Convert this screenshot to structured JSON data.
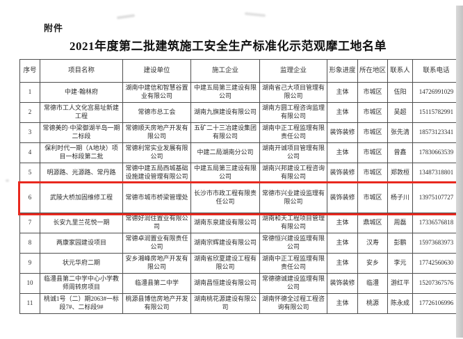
{
  "page": {
    "attachment_label": "附件",
    "title": "2021年度第二批建筑施工安全生产标准化示范观摩工地名单"
  },
  "table": {
    "highlight_color": "#e8281e",
    "columns": [
      "序号",
      "项目名称",
      "建设单位",
      "施工企业",
      "监理企业",
      "形象进度",
      "所在地区",
      "联系人",
      "联系电话"
    ],
    "rows": [
      {
        "no": "1",
        "project": "中建·翰林府",
        "builder": "湖南中建信和智慧谷置业有限公司",
        "contractor": "中建五局第三建设有限公司",
        "supervisor": "湖南省己大项目管理有限公司",
        "progress": "主体",
        "district": "市城区",
        "contact": "伍阳",
        "phone": "14726991029",
        "highlighted": false
      },
      {
        "no": "2",
        "project": "常德市工人文化宫易址新建工程",
        "builder": "常德市总工会",
        "contractor": "湖南九旗建设有限公司",
        "supervisor": "湖南方圆工程咨询监理有限公司",
        "progress": "主体",
        "district": "市城区",
        "contact": "吴超",
        "phone": "15115782991",
        "highlighted": false
      },
      {
        "no": "3",
        "project": "常德美的·中梁御湖半岛一期二标段",
        "builder": "常德顺天房地产开发有限公司",
        "contractor": "五矿二十三冶建设集团有限公司",
        "supervisor": "湖南中正工程监理有限责任公司",
        "progress": "装饰装修",
        "district": "市城区",
        "contact": "张先清",
        "phone": "18573123341",
        "highlighted": false
      },
      {
        "no": "4",
        "project": "保利时代一期（A地块）项目一标段第二批",
        "builder": "常德利常实业发展有限公司",
        "contractor": "中建二局湖南分公司",
        "supervisor": "湖南开诚项目管理有限公司",
        "progress": "主体",
        "district": "市城区",
        "contact": "曾鑫",
        "phone": "17830663539",
        "highlighted": false
      },
      {
        "no": "5",
        "project": "明源路、光源路、常丹路",
        "builder": "常德中建五局西城基础设施建设管理有限公司",
        "contractor": "中建五局第三建设有限公司",
        "supervisor": "湖南兴邦建设工程咨询有限公司",
        "progress": "装饰装修",
        "district": "市城区",
        "contact": "郑敦桓",
        "phone": "13487318801",
        "highlighted": false
      },
      {
        "no": "6",
        "project": "武陵大桥加固维修工程",
        "builder": "常德市城市桥梁管理处",
        "contractor": "长沙市市政工程有限责任公司",
        "supervisor": "常德市兴业建设监理有限公司",
        "progress": "装饰装修",
        "district": "市城区",
        "contact": "杨子川",
        "phone": "13975107727",
        "highlighted": true
      },
      {
        "no": "7",
        "project": "长安九里兰花悦一期",
        "builder": "常德好润住置业有限公司",
        "contractor": "湖南东泉建设有限公司",
        "supervisor": "湖南和天工程项目管理有限公司",
        "progress": "主体",
        "district": "鼎城区",
        "contact": "周磊",
        "phone": "17336576818",
        "highlighted": false
      },
      {
        "no": "8",
        "project": "两康家园建设项目",
        "builder": "常德卓润置业有限责任公司",
        "contractor": "湖南宗辉建设有限公司",
        "supervisor": "常德恒兴建设监理有限公司",
        "progress": "主体",
        "district": "汉寿",
        "contact": "彭鹏",
        "phone": "15973683973",
        "highlighted": false
      },
      {
        "no": "9",
        "project": "状元华府二期",
        "builder": "安乡湘峰房地产开发有限公司",
        "contractor": "湖南省欣夏建设工程有限公司",
        "supervisor": "湖南中正工程监理有限责任公司",
        "progress": "主体",
        "district": "安乡",
        "contact": "李元",
        "phone": "17742560630",
        "highlighted": false
      },
      {
        "no": "10",
        "project": "临澧县第二中学中心小学教师周转房项目",
        "builder": "临澧县第二中学",
        "contractor": "湖南昌恒建设有限公司",
        "supervisor": "常德德诚建设监理有限公司",
        "progress": "装饰装修",
        "district": "临澧",
        "contact": "游红平",
        "phone": "15207367576",
        "highlighted": false
      },
      {
        "no": "11",
        "project": "桃诚1号（二）期2063#一标段7#、二标段9#",
        "builder": "桃源县博信房地产开发有限公司",
        "contractor": "湖南桃花源建设有限公司",
        "supervisor": "湖南怀德全过程工程咨询有限公司",
        "progress": "主体",
        "district": "桃源",
        "contact": "陈永成",
        "phone": "17726106996",
        "highlighted": false
      }
    ]
  }
}
